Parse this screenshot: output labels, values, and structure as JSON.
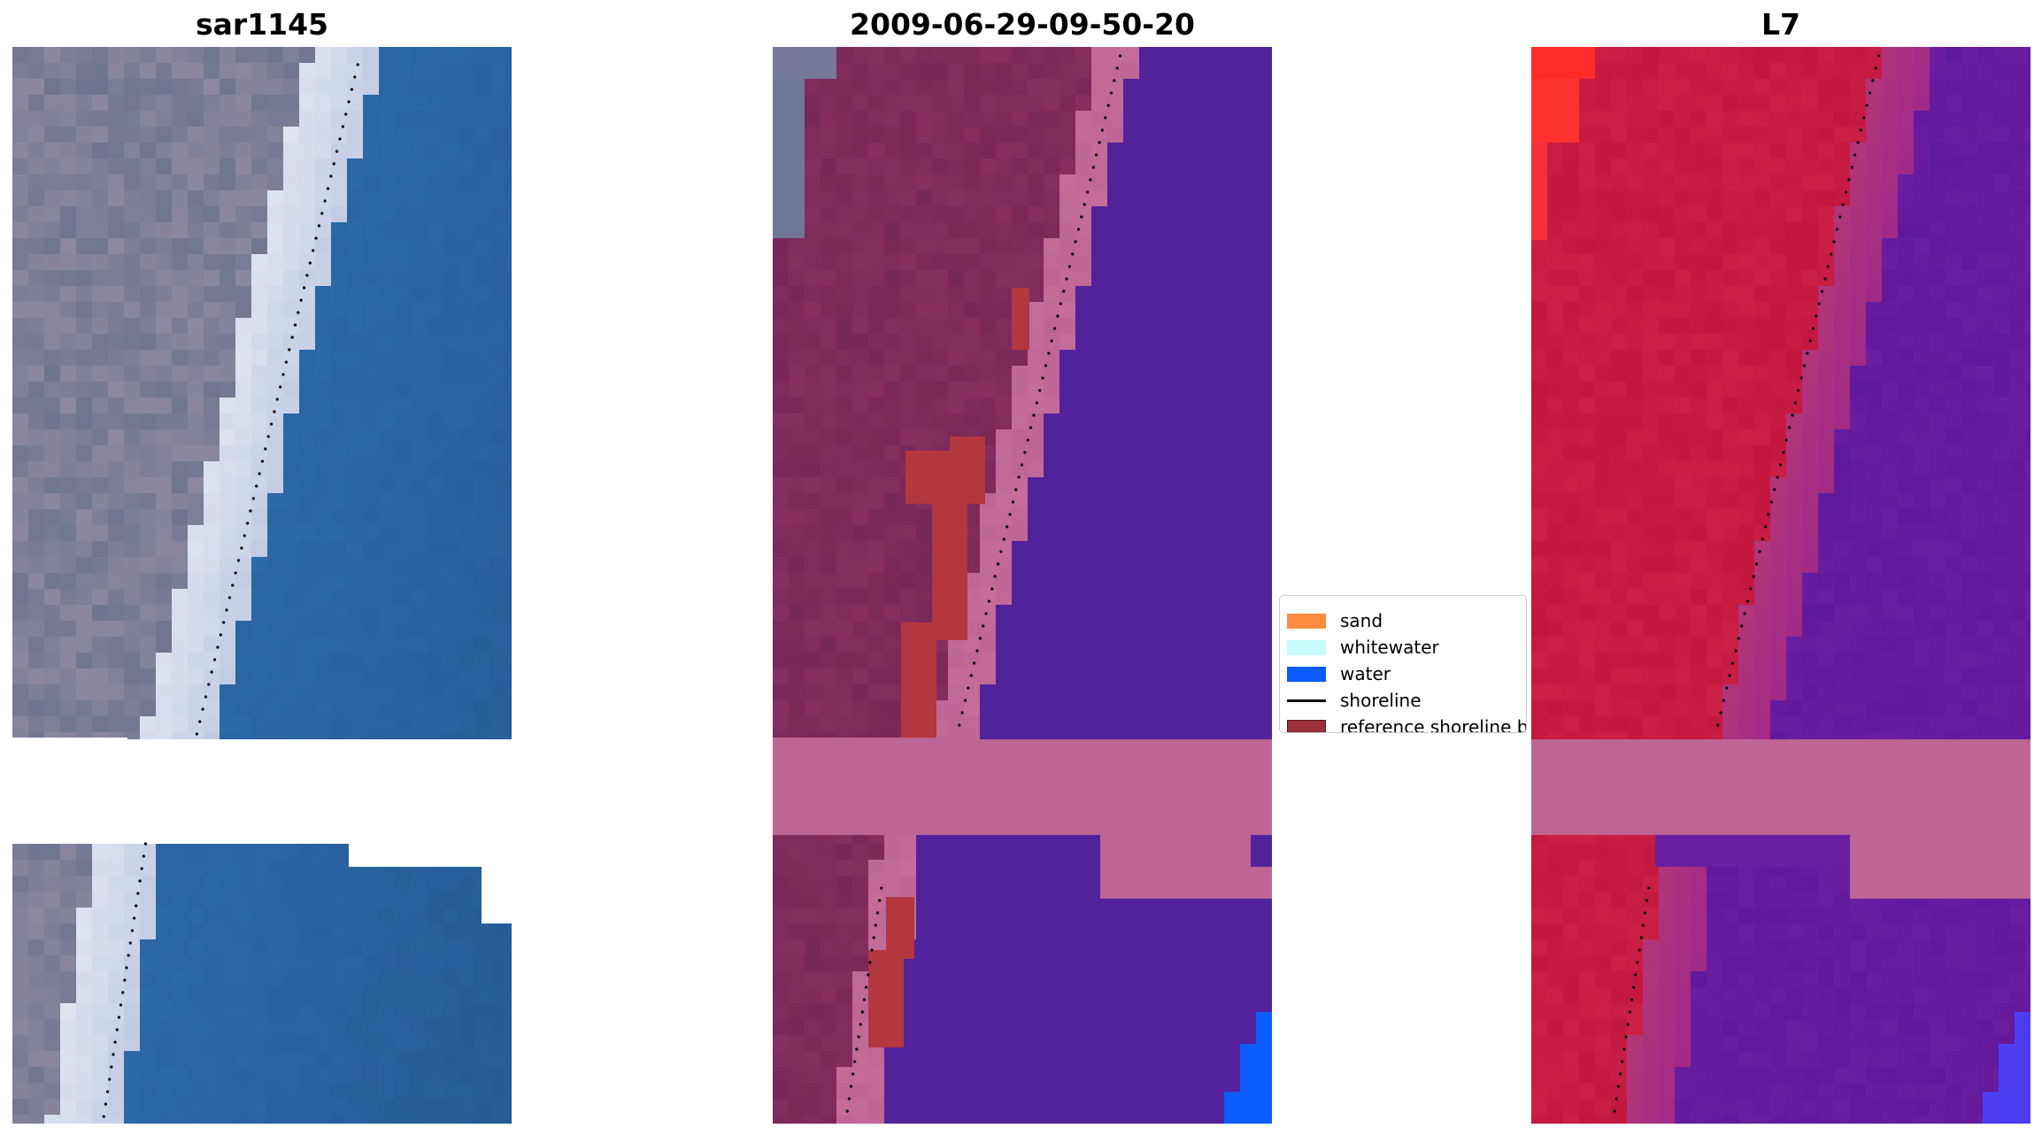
{
  "panels": [
    {
      "title": "sar1145",
      "kind": "rgb"
    },
    {
      "title": "2009-06-29-09-50-20",
      "kind": "classified"
    },
    {
      "title": "L7",
      "kind": "index"
    }
  ],
  "legend": {
    "items": [
      {
        "label": "sand",
        "color": "#ff8c3f",
        "type": "patch"
      },
      {
        "label": "whitewater",
        "color": "#c8fcff",
        "type": "patch"
      },
      {
        "label": "water",
        "color": "#0a5cff",
        "type": "patch"
      },
      {
        "label": "shoreline",
        "color": "#000000",
        "type": "line"
      },
      {
        "label": "reference shoreline b",
        "color": "#9b3038",
        "type": "patch"
      }
    ]
  },
  "colors": {
    "rgb_water": "#2d6aa7",
    "rgb_land": "#6f7590",
    "rgb_surf": "#dfe6f2",
    "class_water": "#52229a",
    "class_land": "#862e60",
    "class_buffer": "#bd6594",
    "class_reference": "#b4363f",
    "index_land": "#c3173e",
    "index_water": "#6a1ea0",
    "index_buffer": "#bd6594",
    "index_bright": "#ff2a2a",
    "water_blue": "#0a5cff",
    "shoreline_dots": "#000000"
  }
}
